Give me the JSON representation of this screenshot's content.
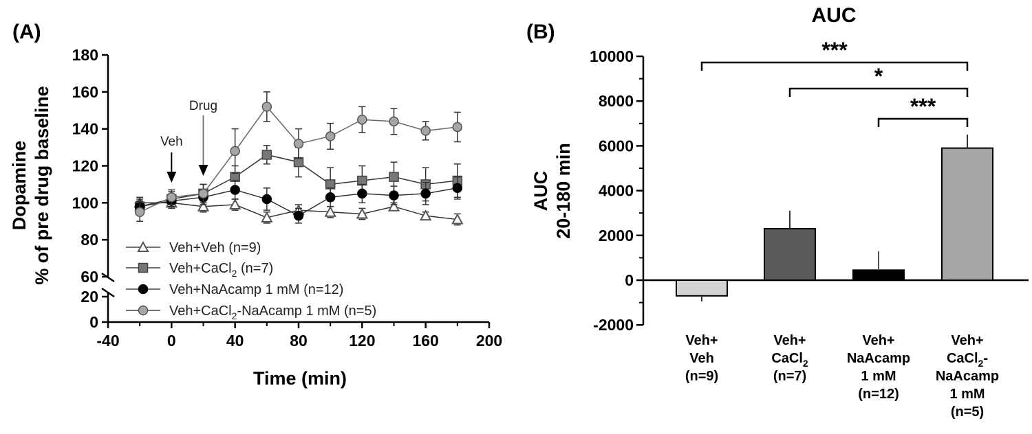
{
  "panel_a": {
    "label": "(A)",
    "annotations": {
      "veh": "Veh",
      "drug": "Drug"
    },
    "legend_sub": "2"
  },
  "panel_b": {
    "label": "(B)"
  },
  "chart_data": [
    {
      "type": "line",
      "title": "",
      "xlabel": "Time (min)",
      "ylabel": [
        "Dopamine",
        "% of pre drug baseline"
      ],
      "xlim": [
        -40,
        200
      ],
      "xticks": [
        -40,
        0,
        40,
        80,
        120,
        160,
        200
      ],
      "ylim_upper": [
        60,
        180
      ],
      "ylim_lower": [
        0,
        20
      ],
      "yticks": [
        0,
        20,
        60,
        80,
        100,
        120,
        140,
        160,
        180
      ],
      "axis_break": true,
      "legend_position": "bottom-left",
      "x": [
        -20,
        0,
        20,
        40,
        60,
        80,
        100,
        120,
        140,
        160,
        180
      ],
      "series": [
        {
          "name": "Veh+Veh (n=9)",
          "marker": "triangle-open",
          "color": "#555555",
          "values": [
            100,
            100,
            98,
            99,
            92,
            96,
            95,
            94,
            98,
            93,
            91
          ],
          "errors": [
            3,
            3,
            3,
            3,
            3,
            3,
            3,
            3,
            2,
            2,
            3
          ]
        },
        {
          "name_parts": [
            "Veh+CaCl",
            " (n=7)"
          ],
          "marker": "square",
          "color": "#777777",
          "values": [
            98,
            102,
            105,
            114,
            126,
            122,
            110,
            112,
            114,
            110,
            112
          ],
          "errors": [
            4,
            4,
            5,
            6,
            5,
            8,
            9,
            8,
            8,
            9,
            9
          ]
        },
        {
          "name": "Veh+NaAcamp 1 mM (n=12)",
          "marker": "circle",
          "color": "#000000",
          "values": [
            98,
            101,
            103,
            107,
            102,
            93,
            103,
            105,
            104,
            105,
            108
          ],
          "errors": [
            3,
            3,
            4,
            5,
            6,
            4,
            5,
            5,
            5,
            6,
            6
          ]
        },
        {
          "name_parts": [
            "Veh+CaCl",
            "-NaAcamp 1 mM (n=5)"
          ],
          "marker": "circle",
          "color": "#a6a6a6",
          "values": [
            95,
            103,
            105,
            128,
            152,
            132,
            136,
            145,
            144,
            139,
            141
          ],
          "errors": [
            5,
            4,
            5,
            12,
            8,
            8,
            7,
            7,
            7,
            5,
            8
          ]
        }
      ]
    },
    {
      "type": "bar",
      "title": "AUC",
      "ylabel": [
        "AUC",
        "20-180 min"
      ],
      "ylim": [
        -2000,
        10000
      ],
      "yticks": [
        -2000,
        0,
        2000,
        4000,
        6000,
        8000,
        10000
      ],
      "categories": [
        [
          "Veh+",
          "Veh",
          "(n=9)"
        ],
        [
          "Veh+",
          "CaCl|2",
          "(n=7)"
        ],
        [
          "Veh+",
          "NaAcamp",
          "1 mM",
          "(n=12)"
        ],
        [
          "Veh+",
          "CaCl|2|-",
          "NaAcamp",
          "1 mM",
          "(n=5)"
        ]
      ],
      "values": [
        -700,
        2300,
        450,
        5900
      ],
      "errors": [
        250,
        800,
        850,
        600
      ],
      "colors": [
        "#d3d3d3",
        "#5a5a5a",
        "#000000",
        "#a6a6a6"
      ],
      "significance": [
        {
          "from": 0,
          "to": 3,
          "label": "***"
        },
        {
          "from": 1,
          "to": 3,
          "label": "*"
        },
        {
          "from": 2,
          "to": 3,
          "label": "***"
        }
      ]
    }
  ]
}
